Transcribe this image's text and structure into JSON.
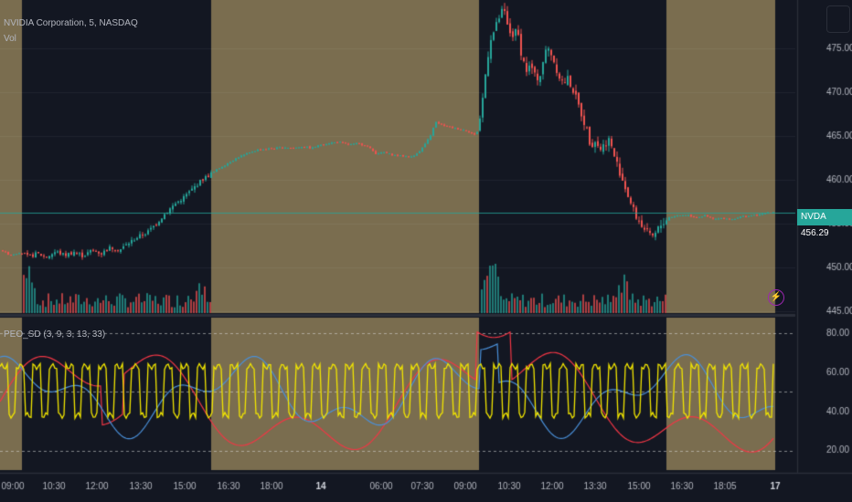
{
  "symbol_title": "NVIDIA Corporation, 5, NASDAQ",
  "volume_label": "Vol",
  "indicator": {
    "name": "PEO_SD",
    "params": "(3, 9, 3, 13, 33)"
  },
  "price_tag": {
    "symbol": "NVDA",
    "value": "456.29"
  },
  "lightning_icon": "⚡",
  "colors": {
    "background": "#131722",
    "session_shade": "#7a6d4f",
    "up": "#26a69a",
    "down": "#ef5350",
    "indicator_red": "#f23645",
    "indicator_blue": "#4a90d9",
    "indicator_yellow": "#f2e600",
    "axis_text": "#b2b5be"
  },
  "chart_data": {
    "type": "candlestick",
    "price_axis": {
      "ticks": [
        445,
        450,
        455,
        460,
        465,
        470,
        475
      ],
      "labels": [
        "445.00",
        "450.00",
        "455.00",
        "460.00",
        "465.00",
        "470.00",
        "475.00"
      ],
      "range": [
        444.8,
        480.5
      ],
      "current": 456.29
    },
    "indicator_axis": {
      "ticks": [
        20,
        40,
        60,
        80
      ],
      "labels": [
        "20.00",
        "40.00",
        "60.00",
        "80.00"
      ],
      "range": [
        10,
        88
      ],
      "dashed_levels": [
        20,
        50,
        80
      ]
    },
    "time_axis": {
      "labels": [
        "09:00",
        "10:30",
        "12:00",
        "13:30",
        "15:00",
        "16:30",
        "18:00",
        "14",
        "06:00",
        "07:30",
        "09:00",
        "10:30",
        "12:00",
        "13:30",
        "15:00",
        "16:30",
        "18:05",
        "17"
      ],
      "bold": [
        "14",
        "17"
      ]
    },
    "price_path": [
      [
        0,
        452.0
      ],
      [
        10,
        451.4
      ],
      [
        20,
        451.7
      ],
      [
        30,
        451.2
      ],
      [
        40,
        451.6
      ],
      [
        50,
        451.2
      ],
      [
        60,
        451.8
      ],
      [
        70,
        451.4
      ],
      [
        80,
        451.8
      ],
      [
        90,
        451.3
      ],
      [
        100,
        452.0
      ],
      [
        110,
        451.6
      ],
      [
        120,
        452.3
      ],
      [
        130,
        452.0
      ],
      [
        140,
        452.8
      ],
      [
        150,
        453.5
      ],
      [
        160,
        454.0
      ],
      [
        170,
        455.0
      ],
      [
        180,
        456.2
      ],
      [
        190,
        457.2
      ],
      [
        200,
        458.0
      ],
      [
        210,
        459.0
      ],
      [
        220,
        460.0
      ],
      [
        230,
        460.7
      ],
      [
        240,
        461.4
      ],
      [
        250,
        462.0
      ],
      [
        260,
        462.6
      ],
      [
        270,
        463.0
      ],
      [
        280,
        463.4
      ],
      [
        290,
        463.5
      ],
      [
        300,
        463.6
      ],
      [
        310,
        463.7
      ],
      [
        320,
        463.6
      ],
      [
        330,
        463.8
      ],
      [
        340,
        463.6
      ],
      [
        350,
        464.0
      ],
      [
        360,
        464.2
      ],
      [
        370,
        464.3
      ],
      [
        380,
        464.0
      ],
      [
        390,
        464.1
      ],
      [
        400,
        463.9
      ],
      [
        410,
        463.0
      ],
      [
        420,
        463.1
      ],
      [
        430,
        462.8
      ],
      [
        440,
        462.7
      ],
      [
        450,
        462.6
      ],
      [
        460,
        463.5
      ],
      [
        470,
        465.0
      ],
      [
        475,
        466.6
      ],
      [
        480,
        466.3
      ],
      [
        490,
        466.0
      ],
      [
        500,
        465.8
      ],
      [
        510,
        465.6
      ],
      [
        520,
        465.0
      ],
      [
        525,
        467.5
      ],
      [
        530,
        472.0
      ],
      [
        535,
        476.0
      ],
      [
        540,
        477.0
      ],
      [
        545,
        478.5
      ],
      [
        550,
        479.5
      ],
      [
        555,
        477.0
      ],
      [
        560,
        476.5
      ],
      [
        565,
        477.0
      ],
      [
        570,
        474.0
      ],
      [
        575,
        472.5
      ],
      [
        580,
        473.0
      ],
      [
        585,
        471.5
      ],
      [
        590,
        472.0
      ],
      [
        595,
        474.5
      ],
      [
        600,
        475.0
      ],
      [
        605,
        473.5
      ],
      [
        610,
        472.0
      ],
      [
        615,
        471.0
      ],
      [
        620,
        471.5
      ],
      [
        625,
        470.5
      ],
      [
        630,
        469.0
      ],
      [
        635,
        467.5
      ],
      [
        640,
        466.0
      ],
      [
        645,
        464.0
      ],
      [
        650,
        464.5
      ],
      [
        655,
        463.5
      ],
      [
        660,
        464.0
      ],
      [
        665,
        464.6
      ],
      [
        670,
        463.0
      ],
      [
        675,
        461.5
      ],
      [
        680,
        460.0
      ],
      [
        685,
        458.5
      ],
      [
        690,
        457.0
      ],
      [
        695,
        455.8
      ],
      [
        700,
        455.0
      ],
      [
        705,
        454.2
      ],
      [
        710,
        453.5
      ],
      [
        715,
        453.6
      ],
      [
        720,
        454.6
      ],
      [
        725,
        455.2
      ],
      [
        730,
        455.7
      ],
      [
        740,
        455.9
      ],
      [
        750,
        456.0
      ],
      [
        760,
        455.7
      ],
      [
        770,
        455.9
      ],
      [
        780,
        455.5
      ],
      [
        790,
        455.6
      ],
      [
        800,
        455.5
      ],
      [
        810,
        455.8
      ],
      [
        820,
        455.9
      ],
      [
        830,
        456.0
      ],
      [
        840,
        456.3
      ],
      [
        845,
        456.29
      ]
    ],
    "series": [
      {
        "name": "Vol"
      },
      {
        "name": "PEO_SD"
      }
    ]
  }
}
